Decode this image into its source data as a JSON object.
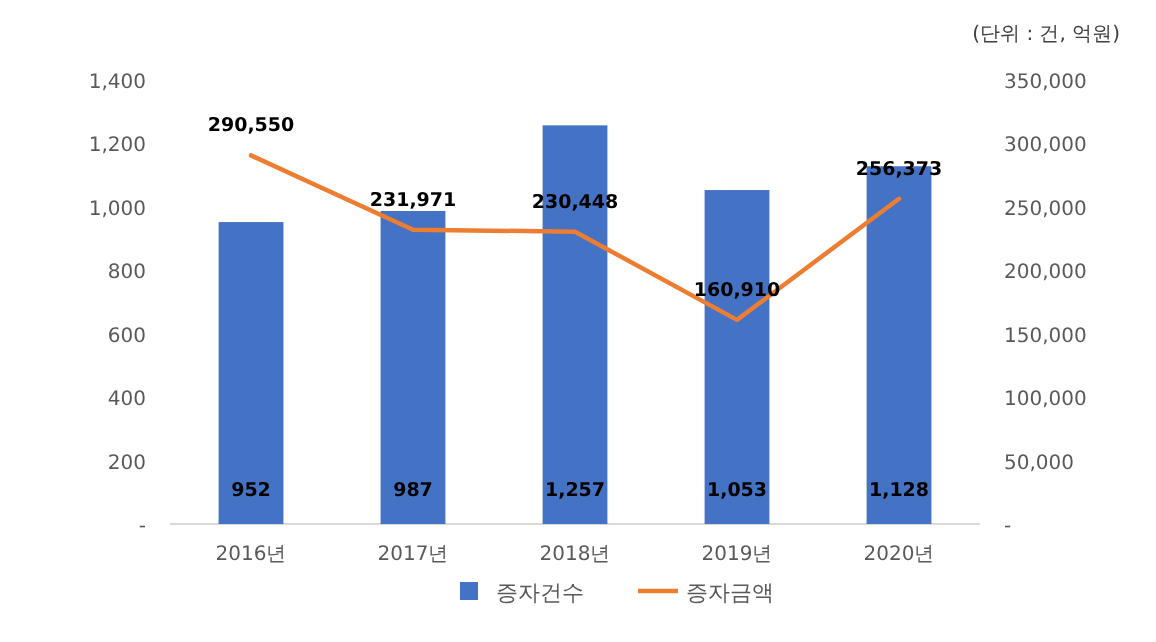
{
  "chart_data": {
    "type": "bar",
    "categories": [
      "2016년",
      "2017년",
      "2018년",
      "2019년",
      "2020년"
    ],
    "series": [
      {
        "name": "증자건수",
        "color": "#4472c4",
        "values": [
          952,
          987,
          1257,
          1053,
          1128
        ],
        "value_labels": [
          "952",
          "987",
          "1,257",
          "1,053",
          "1,128"
        ]
      },
      {
        "name": "증자금액",
        "type": "line",
        "axis": "y2",
        "color": "#ed7d31",
        "values": [
          290550,
          231971,
          230448,
          160910,
          256373
        ],
        "value_labels": [
          "290,550",
          "231,971",
          "230,448",
          "160,910",
          "256,373"
        ]
      }
    ],
    "ylim": [
      0,
      1400
    ],
    "yticks": [
      {
        "value": 0,
        "label": "-"
      },
      {
        "value": 200,
        "label": "200"
      },
      {
        "value": 400,
        "label": "400"
      },
      {
        "value": 600,
        "label": "600"
      },
      {
        "value": 800,
        "label": "800"
      },
      {
        "value": 1000,
        "label": "1,000"
      },
      {
        "value": 1200,
        "label": "1,200"
      },
      {
        "value": 1400,
        "label": "1,400"
      }
    ],
    "y2lim": [
      0,
      350000
    ],
    "y2ticks": [
      {
        "value": 0,
        "label": "-"
      },
      {
        "value": 50000,
        "label": "50,000"
      },
      {
        "value": 100000,
        "label": "100,000"
      },
      {
        "value": 150000,
        "label": "150,000"
      },
      {
        "value": 200000,
        "label": "200,000"
      },
      {
        "value": 250000,
        "label": "250,000"
      },
      {
        "value": 300000,
        "label": "300,000"
      },
      {
        "value": 350000,
        "label": "350,000"
      }
    ],
    "legend": "bottom",
    "annotations": [
      "(단위 : 건, 억원)"
    ]
  }
}
